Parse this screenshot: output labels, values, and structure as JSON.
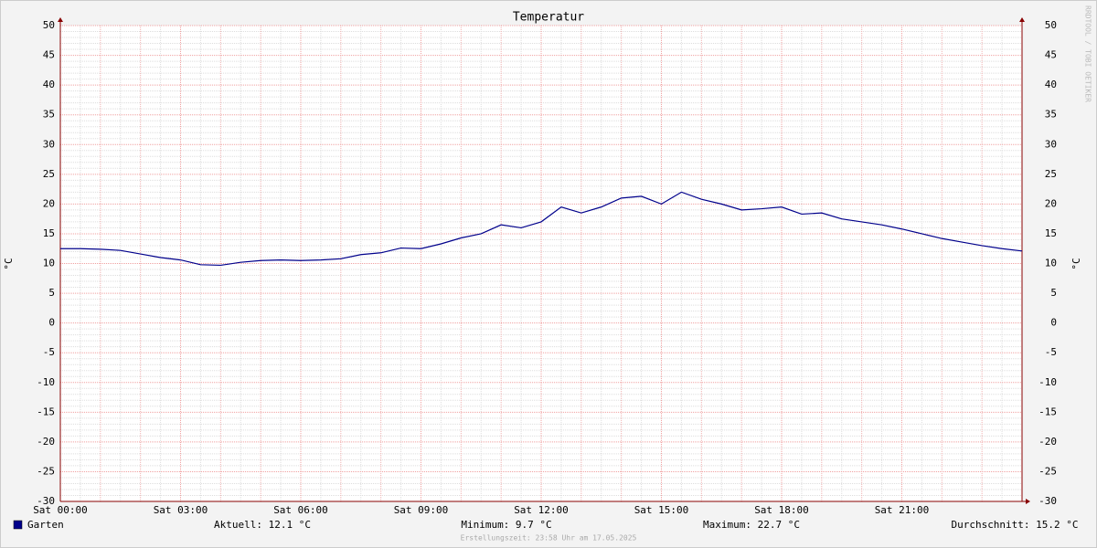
{
  "chart_data": {
    "type": "line",
    "title": "Temperatur",
    "ylabel": "°C",
    "x": [
      0,
      0.5,
      1,
      1.5,
      2,
      2.5,
      3,
      3.5,
      4,
      4.5,
      5,
      5.5,
      6,
      6.5,
      7,
      7.5,
      8,
      8.5,
      9,
      9.5,
      10,
      10.5,
      11,
      11.5,
      12,
      12.5,
      13,
      13.5,
      14,
      14.5,
      15,
      15.5,
      16,
      16.5,
      17,
      17.5,
      18,
      18.5,
      19,
      19.5,
      20,
      20.5,
      21,
      21.5,
      22,
      22.5,
      23,
      23.5,
      24
    ],
    "series": [
      {
        "name": "Garten",
        "color": "#00008b",
        "values": [
          12.5,
          12.5,
          12.4,
          12.2,
          11.6,
          11.0,
          10.6,
          9.8,
          9.7,
          10.2,
          10.5,
          10.6,
          10.5,
          10.6,
          10.8,
          11.5,
          11.8,
          12.6,
          12.5,
          13.3,
          14.3,
          15.0,
          16.5,
          16.0,
          17.0,
          19.5,
          18.5,
          19.5,
          21.0,
          21.3,
          20.0,
          22.0,
          20.8,
          20.0,
          19.0,
          19.2,
          19.5,
          18.3,
          18.5,
          17.5,
          17.0,
          16.5,
          15.8,
          15.0,
          14.2,
          13.6,
          13.0,
          12.5,
          12.1
        ]
      }
    ],
    "xlim": [
      0,
      24
    ],
    "xticks": [
      {
        "value": 0,
        "label": "Sat 00:00"
      },
      {
        "value": 3,
        "label": "Sat 03:00"
      },
      {
        "value": 6,
        "label": "Sat 06:00"
      },
      {
        "value": 9,
        "label": "Sat 09:00"
      },
      {
        "value": 12,
        "label": "Sat 12:00"
      },
      {
        "value": 15,
        "label": "Sat 15:00"
      },
      {
        "value": 18,
        "label": "Sat 18:00"
      },
      {
        "value": 21,
        "label": "Sat 21:00"
      }
    ],
    "ylim": [
      -30,
      50
    ],
    "yticks": [
      -30,
      -25,
      -20,
      -15,
      -10,
      -5,
      0,
      5,
      10,
      15,
      20,
      25,
      30,
      35,
      40,
      45,
      50
    ],
    "grid": true,
    "stats": [
      "Aktuell: 12.1 °C",
      "Minimum: 9.7 °C",
      "Maximum: 22.7 °C",
      "Durchschnitt: 15.2 °C"
    ],
    "footer": "Erstellungszeit: 23:58 Uhr am 17.05.2025",
    "watermark": "RRDTOOL / TOBI OETIKER"
  }
}
